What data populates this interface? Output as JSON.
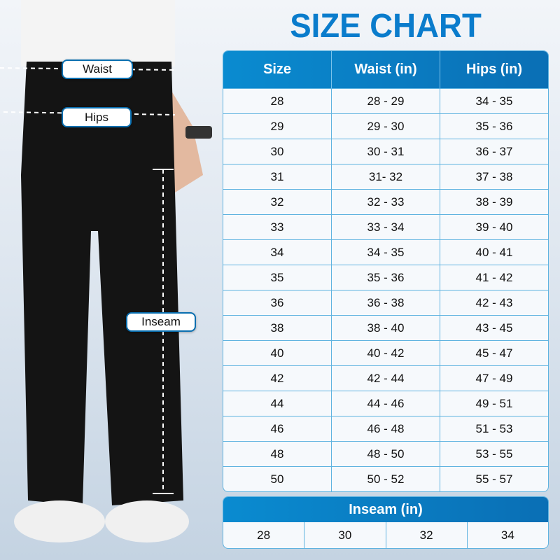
{
  "title": "SIZE CHART",
  "labels": {
    "waist": "Waist",
    "hips": "Hips",
    "inseam": "Inseam"
  },
  "table": {
    "headers": [
      "Size",
      "Waist (in)",
      "Hips (in)"
    ],
    "rows": [
      [
        "28",
        "28 - 29",
        "34 - 35"
      ],
      [
        "29",
        "29 - 30",
        "35 - 36"
      ],
      [
        "30",
        "30 - 31",
        "36 - 37"
      ],
      [
        "31",
        "31- 32",
        "37 - 38"
      ],
      [
        "32",
        "32 - 33",
        "38 - 39"
      ],
      [
        "33",
        "33 - 34",
        "39 - 40"
      ],
      [
        "34",
        "34 - 35",
        "40 - 41"
      ],
      [
        "35",
        "35 - 36",
        "41 - 42"
      ],
      [
        "36",
        "36 - 38",
        "42 - 43"
      ],
      [
        "38",
        "38 - 40",
        "43 - 45"
      ],
      [
        "40",
        "40 - 42",
        "45 - 47"
      ],
      [
        "42",
        "42 - 44",
        "47 - 49"
      ],
      [
        "44",
        "44 - 46",
        "49 - 51"
      ],
      [
        "46",
        "46 - 48",
        "51 - 53"
      ],
      [
        "48",
        "48 - 50",
        "53 - 55"
      ],
      [
        "50",
        "50 - 52",
        "55 - 57"
      ]
    ]
  },
  "inseam": {
    "header": "Inseam (in)",
    "values": [
      "28",
      "30",
      "32",
      "34"
    ]
  },
  "colors": {
    "accent": "#0a7ccc",
    "border": "#5fb3e0",
    "pants": "#141414"
  }
}
